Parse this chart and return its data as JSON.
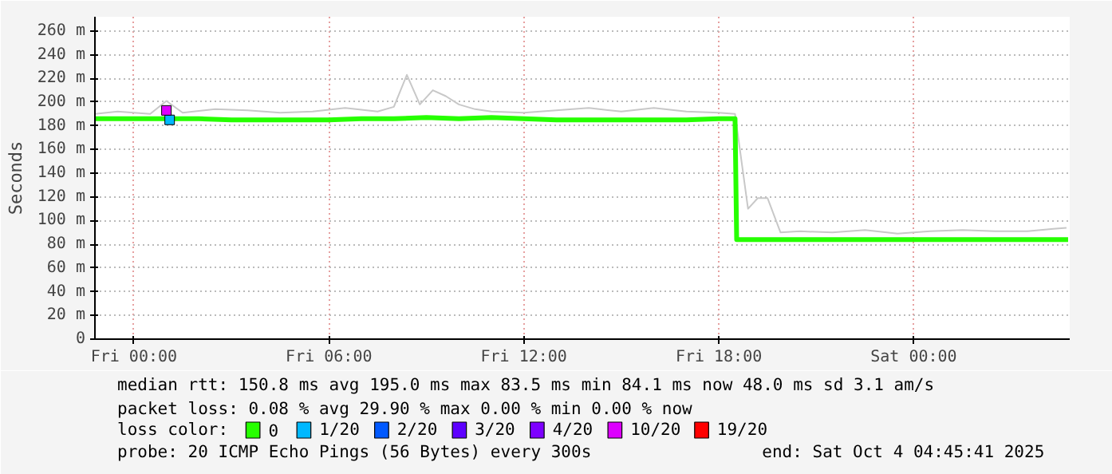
{
  "chart_data": {
    "type": "line",
    "ylabel": "Seconds",
    "legend_title": "loss color:",
    "xlim": [
      "2025-10-02T22:48",
      "2025-10-04T04:48"
    ],
    "ylim": [
      0,
      272
    ],
    "xticks": [
      {
        "value": "2025-10-03T00:00",
        "label": "Fri 00:00"
      },
      {
        "value": "2025-10-03T06:00",
        "label": "Fri 06:00"
      },
      {
        "value": "2025-10-03T12:00",
        "label": "Fri 12:00"
      },
      {
        "value": "2025-10-03T18:00",
        "label": "Fri 18:00"
      },
      {
        "value": "2025-10-04T00:00",
        "label": "Sat 00:00"
      }
    ],
    "yticks": [
      0,
      {
        "value": 20,
        "label": "20 m"
      },
      {
        "value": 40,
        "label": "40 m"
      },
      {
        "value": 60,
        "label": "60 m"
      },
      {
        "value": 80,
        "label": "80 m"
      },
      {
        "value": 100,
        "label": "100 m"
      },
      {
        "value": 120,
        "label": "120 m"
      },
      {
        "value": 140,
        "label": "140 m"
      },
      {
        "value": 160,
        "label": "160 m"
      },
      {
        "value": 180,
        "label": "180 m"
      },
      {
        "value": 200,
        "label": "200 m"
      },
      {
        "value": 220,
        "label": "220 m"
      },
      {
        "value": 240,
        "label": "240 m"
      },
      {
        "value": 260,
        "label": "260 m"
      }
    ],
    "grid": true,
    "legend": "bottom",
    "line_style": "solid",
    "series": [
      {
        "color": "#c8c8c8",
        "x": [
          "2025-10-02T22:48",
          "2025-10-02T23:30",
          "2025-10-03T00:30",
          "2025-10-03T01:00",
          "2025-10-03T01:30",
          "2025-10-03T02:30",
          "2025-10-03T03:30",
          "2025-10-03T04:30",
          "2025-10-03T05:30",
          "2025-10-03T06:30",
          "2025-10-03T07:30",
          "2025-10-03T08:00",
          "2025-10-03T08:24",
          "2025-10-03T08:48",
          "2025-10-03T09:12",
          "2025-10-03T09:36",
          "2025-10-03T10:00",
          "2025-10-03T10:30",
          "2025-10-03T11:00",
          "2025-10-03T12:00",
          "2025-10-03T13:00",
          "2025-10-03T14:00",
          "2025-10-03T15:00",
          "2025-10-03T16:00",
          "2025-10-03T17:00",
          "2025-10-03T18:00",
          "2025-10-03T18:30",
          "2025-10-03T18:54",
          "2025-10-03T19:12",
          "2025-10-03T19:30",
          "2025-10-03T19:54",
          "2025-10-03T20:30",
          "2025-10-03T21:30",
          "2025-10-03T22:30",
          "2025-10-03T23:30",
          "2025-10-04T00:30",
          "2025-10-04T01:30",
          "2025-10-04T02:30",
          "2025-10-04T03:30",
          "2025-10-04T04:18",
          "2025-10-04T04:42"
        ],
        "values": [
          190,
          192,
          190,
          201,
          191,
          194,
          193,
          191,
          192,
          195,
          192,
          196,
          223,
          198,
          210,
          205,
          198,
          194,
          192,
          191,
          193,
          195,
          192,
          195,
          192,
          191,
          190,
          110,
          119,
          119,
          90,
          91,
          90,
          92,
          89,
          91,
          92,
          91,
          91,
          93,
          94
        ]
      },
      {
        "name": "0",
        "color": "#26ff00",
        "x": [
          "2025-10-02T22:48",
          "2025-10-03T00:00",
          "2025-10-03T01:00",
          "2025-10-03T02:00",
          "2025-10-03T03:00",
          "2025-10-03T04:00",
          "2025-10-03T05:00",
          "2025-10-03T06:00",
          "2025-10-03T07:00",
          "2025-10-03T08:00",
          "2025-10-03T09:00",
          "2025-10-03T10:00",
          "2025-10-03T11:00",
          "2025-10-03T12:00",
          "2025-10-03T13:00",
          "2025-10-03T14:00",
          "2025-10-03T15:00",
          "2025-10-03T16:00",
          "2025-10-03T17:00",
          "2025-10-03T18:00",
          "2025-10-03T18:30",
          "2025-10-03T18:33",
          "2025-10-03T19:00",
          "2025-10-03T20:00",
          "2025-10-03T21:00",
          "2025-10-03T22:00",
          "2025-10-03T23:00",
          "2025-10-04T00:00",
          "2025-10-04T01:00",
          "2025-10-04T02:00",
          "2025-10-04T03:00",
          "2025-10-04T04:00",
          "2025-10-04T04:45"
        ],
        "values": [
          186,
          186,
          186,
          186,
          185,
          185,
          185,
          185,
          186,
          186,
          187,
          186,
          187,
          186,
          185,
          185,
          185,
          185,
          185,
          186,
          186,
          84,
          84,
          84,
          84,
          84,
          84,
          84,
          84,
          84,
          84,
          84,
          84
        ]
      },
      {
        "type": "scatter",
        "marker": "square",
        "name": "1/20",
        "color": "#00b8ff",
        "x": [
          "2025-10-03T01:06"
        ],
        "values": [
          185
        ]
      },
      {
        "type": "scatter",
        "name": "2/20",
        "color": "#0059ff"
      },
      {
        "type": "scatter",
        "name": "3/20",
        "color": "#5e00ff"
      },
      {
        "type": "scatter",
        "name": "4/20",
        "color": "#7e00ff"
      },
      {
        "type": "scatter",
        "marker": "square",
        "name": "10/20",
        "color": "#dd00ff",
        "x": [
          "2025-10-03T01:00"
        ],
        "values": [
          193
        ]
      },
      {
        "type": "scatter",
        "name": "19/20",
        "color": "#ff0000"
      }
    ],
    "annotations": [
      "median rtt:  150.8 ms avg  195.0 ms max  83.5 ms min  84.1 ms now  48.0 ms sd  3.1   am/s",
      "packet loss: 0.08 % avg  29.90 % max  0.00 % min  0.00 % now",
      "probe:       20 ICMP Echo Pings (56 Bytes) every 300s",
      "end: Sat Oct  4 04:45:41 2025"
    ]
  }
}
